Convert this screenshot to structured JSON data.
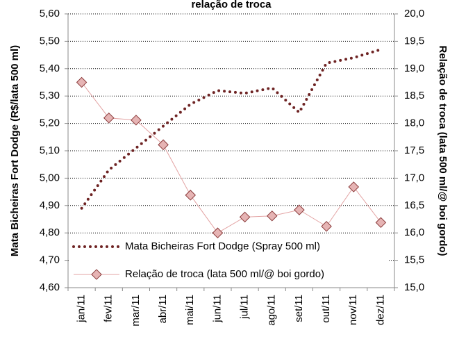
{
  "chart_data": {
    "type": "line",
    "title": "relação de troca",
    "ylabel": "Mata Bicheiras Fort Dodge (R$/lata 500 ml)",
    "y2label": "Relação de troca (lata 500 ml/@ boi gordo)",
    "categories": [
      "jan/11",
      "fev/11",
      "mar/11",
      "abr/11",
      "mai/11",
      "jun/11",
      "jul/11",
      "ago/11",
      "set/11",
      "out/11",
      "nov/11",
      "dez/11"
    ],
    "series": [
      {
        "name": "Mata Bicheiras Fort Dodge (Spray 500 ml)",
        "color": "#6e2323",
        "values": [
          4.89,
          5.03,
          5.11,
          5.19,
          5.27,
          5.32,
          5.31,
          5.33,
          5.24,
          5.42,
          5.44,
          5.47
        ]
      },
      {
        "name": "Relação de troca (lata 500 ml/@ boi gordo)",
        "color": "#e3a3a3",
        "axis": "y2",
        "values": [
          18.75,
          18.1,
          18.06,
          17.61,
          16.69,
          16.0,
          16.29,
          16.31,
          16.42,
          16.12,
          16.84,
          16.19
        ]
      }
    ],
    "ylim": [
      4.6,
      5.6
    ],
    "yticks": [
      {
        "value": 4.6,
        "label": "4,60"
      },
      {
        "value": 4.7,
        "label": "4,70"
      },
      {
        "value": 4.8,
        "label": "4,80"
      },
      {
        "value": 4.9,
        "label": "4,90"
      },
      {
        "value": 5.0,
        "label": "5,00"
      },
      {
        "value": 5.1,
        "label": "5,10"
      },
      {
        "value": 5.2,
        "label": "5,20"
      },
      {
        "value": 5.3,
        "label": "5,30"
      },
      {
        "value": 5.4,
        "label": "5,40"
      },
      {
        "value": 5.5,
        "label": "5,50"
      },
      {
        "value": 5.6,
        "label": "5,60"
      }
    ],
    "y2lim": [
      15,
      20
    ],
    "y2ticks": [
      {
        "value": 15,
        "label": "15,0"
      },
      {
        "value": 15.5,
        "label": "15,5"
      },
      {
        "value": 16,
        "label": "16,0"
      },
      {
        "value": 16.5,
        "label": "16,5"
      },
      {
        "value": 17,
        "label": "17,0"
      },
      {
        "value": 17.5,
        "label": "17,5"
      },
      {
        "value": 18,
        "label": "18,0"
      },
      {
        "value": 18.5,
        "label": "18,5"
      },
      {
        "value": 19,
        "label": "19,0"
      },
      {
        "value": 19.5,
        "label": "19,5"
      },
      {
        "value": 20,
        "label": "20,0"
      }
    ],
    "grid": true,
    "legend": "lower center"
  }
}
